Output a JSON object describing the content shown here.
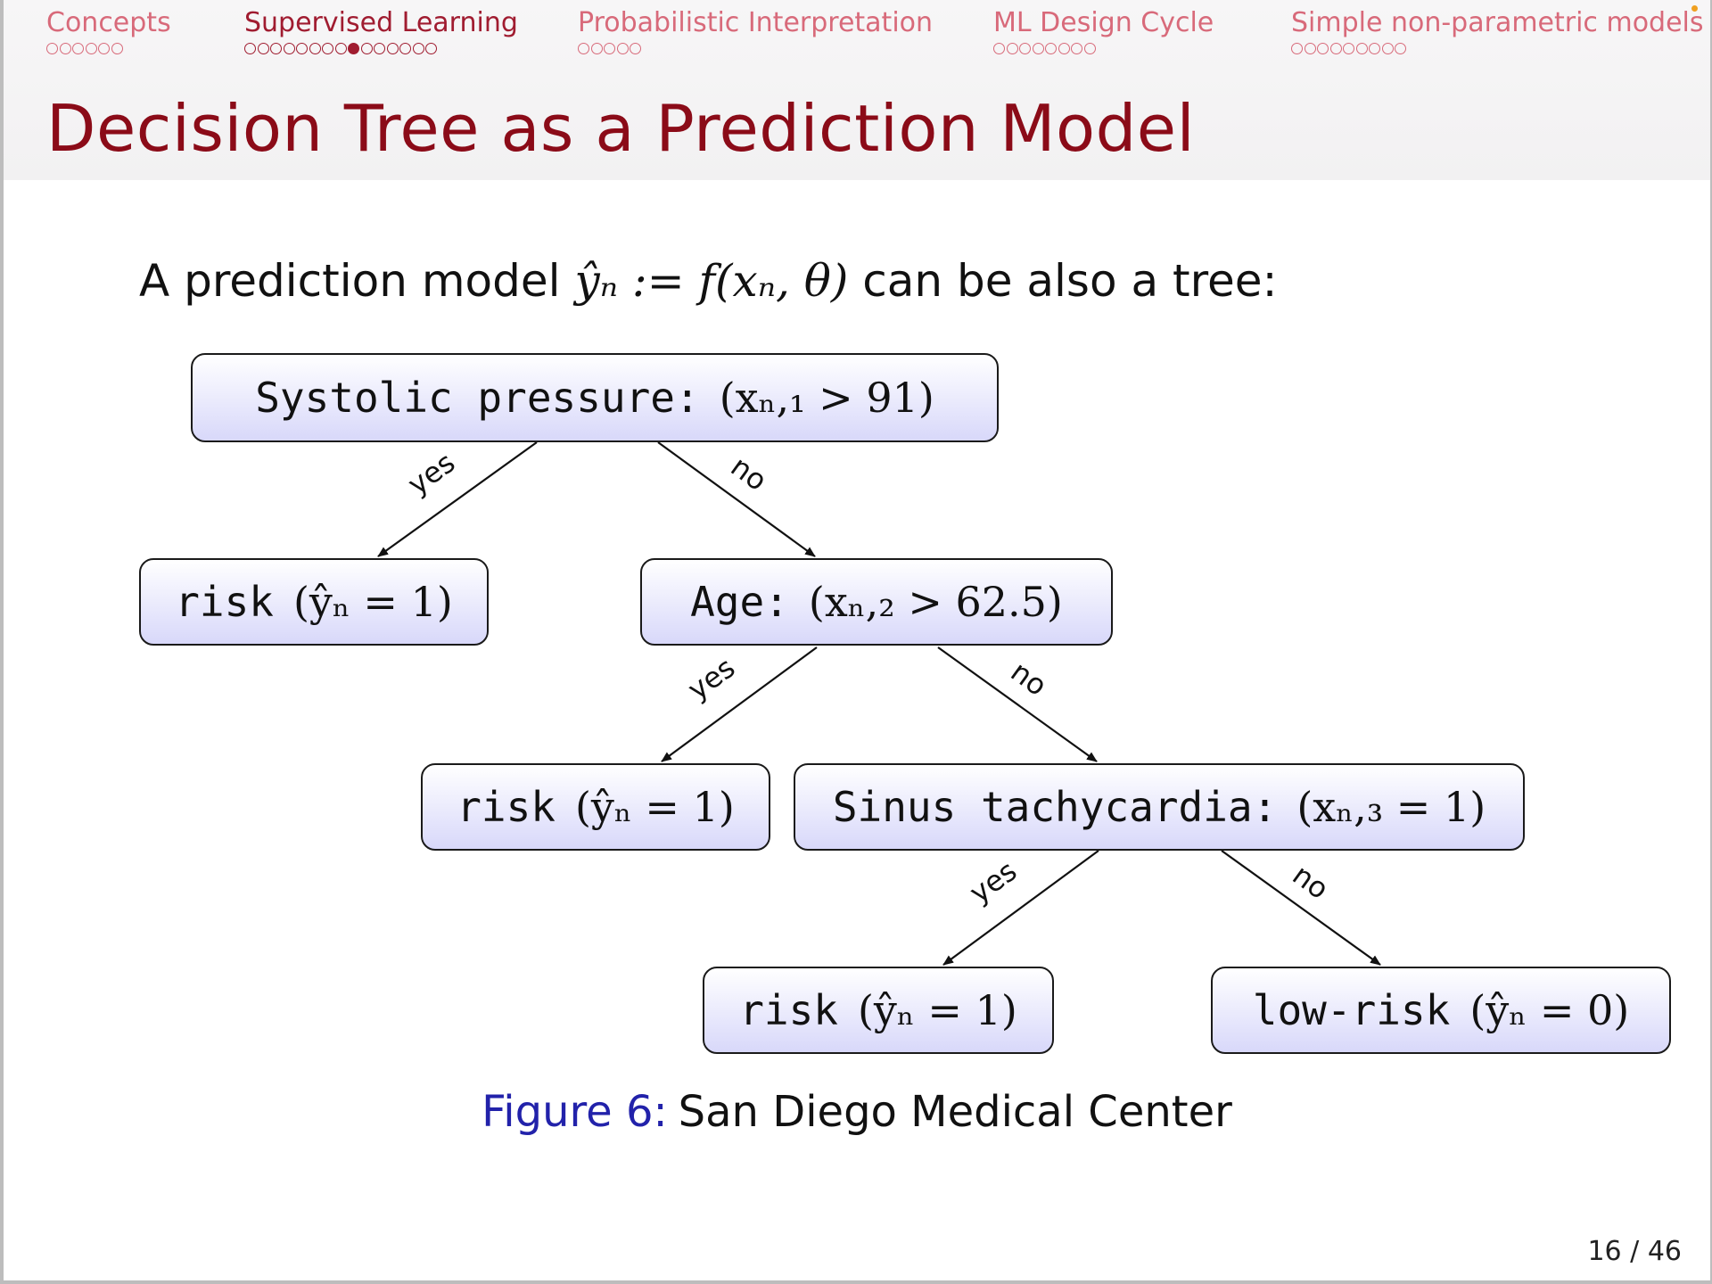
{
  "nav": {
    "sections": [
      {
        "label": "Concepts",
        "dots": 6,
        "active": false,
        "filled_index": -1
      },
      {
        "label": "Supervised Learning",
        "dots": 15,
        "active": true,
        "filled_index": 8
      },
      {
        "label": "Probabilistic Interpretation",
        "dots": 5,
        "active": false,
        "filled_index": -1
      },
      {
        "label": "ML Design Cycle",
        "dots": 8,
        "active": false,
        "filled_index": -1
      },
      {
        "label": "Simple non-parametric models",
        "dots": 9,
        "active": false,
        "filled_index": -1
      }
    ]
  },
  "slide": {
    "title": "Decision Tree as a Prediction Model",
    "intro_prefix": "A prediction model",
    "intro_math": "ŷₙ := f(xₙ, θ)",
    "intro_suffix": "can be also a tree:"
  },
  "tree": {
    "nodes": {
      "root": {
        "label": "Systolic pressure:",
        "condition": "(xₙ,₁ > 91)"
      },
      "leaf1": {
        "label": "risk",
        "condition": "(ŷₙ = 1)"
      },
      "age": {
        "label": "Age:",
        "condition": "(xₙ,₂ > 62.5)"
      },
      "leaf2": {
        "label": "risk",
        "condition": "(ŷₙ = 1)"
      },
      "sinus": {
        "label": "Sinus tachycardia:",
        "condition": "(xₙ,₃ = 1)"
      },
      "leaf3": {
        "label": "risk",
        "condition": "(ŷₙ = 1)"
      },
      "leaf4": {
        "label": "low-risk",
        "condition": "(ŷₙ = 0)"
      }
    },
    "edges": [
      {
        "from": "root",
        "to": "leaf1",
        "label": "yes"
      },
      {
        "from": "root",
        "to": "age",
        "label": "no"
      },
      {
        "from": "age",
        "to": "leaf2",
        "label": "yes"
      },
      {
        "from": "age",
        "to": "sinus",
        "label": "no"
      },
      {
        "from": "sinus",
        "to": "leaf3",
        "label": "yes"
      },
      {
        "from": "sinus",
        "to": "leaf4",
        "label": "no"
      }
    ]
  },
  "caption": {
    "figure": "Figure 6:",
    "text": "San Diego Medical Center"
  },
  "page_number": "16 / 46",
  "colors": {
    "title": "#8b0b18",
    "nav_active": "#a01c30",
    "nav_inactive": "#d86a7a",
    "caption_figure": "#2222aa"
  }
}
